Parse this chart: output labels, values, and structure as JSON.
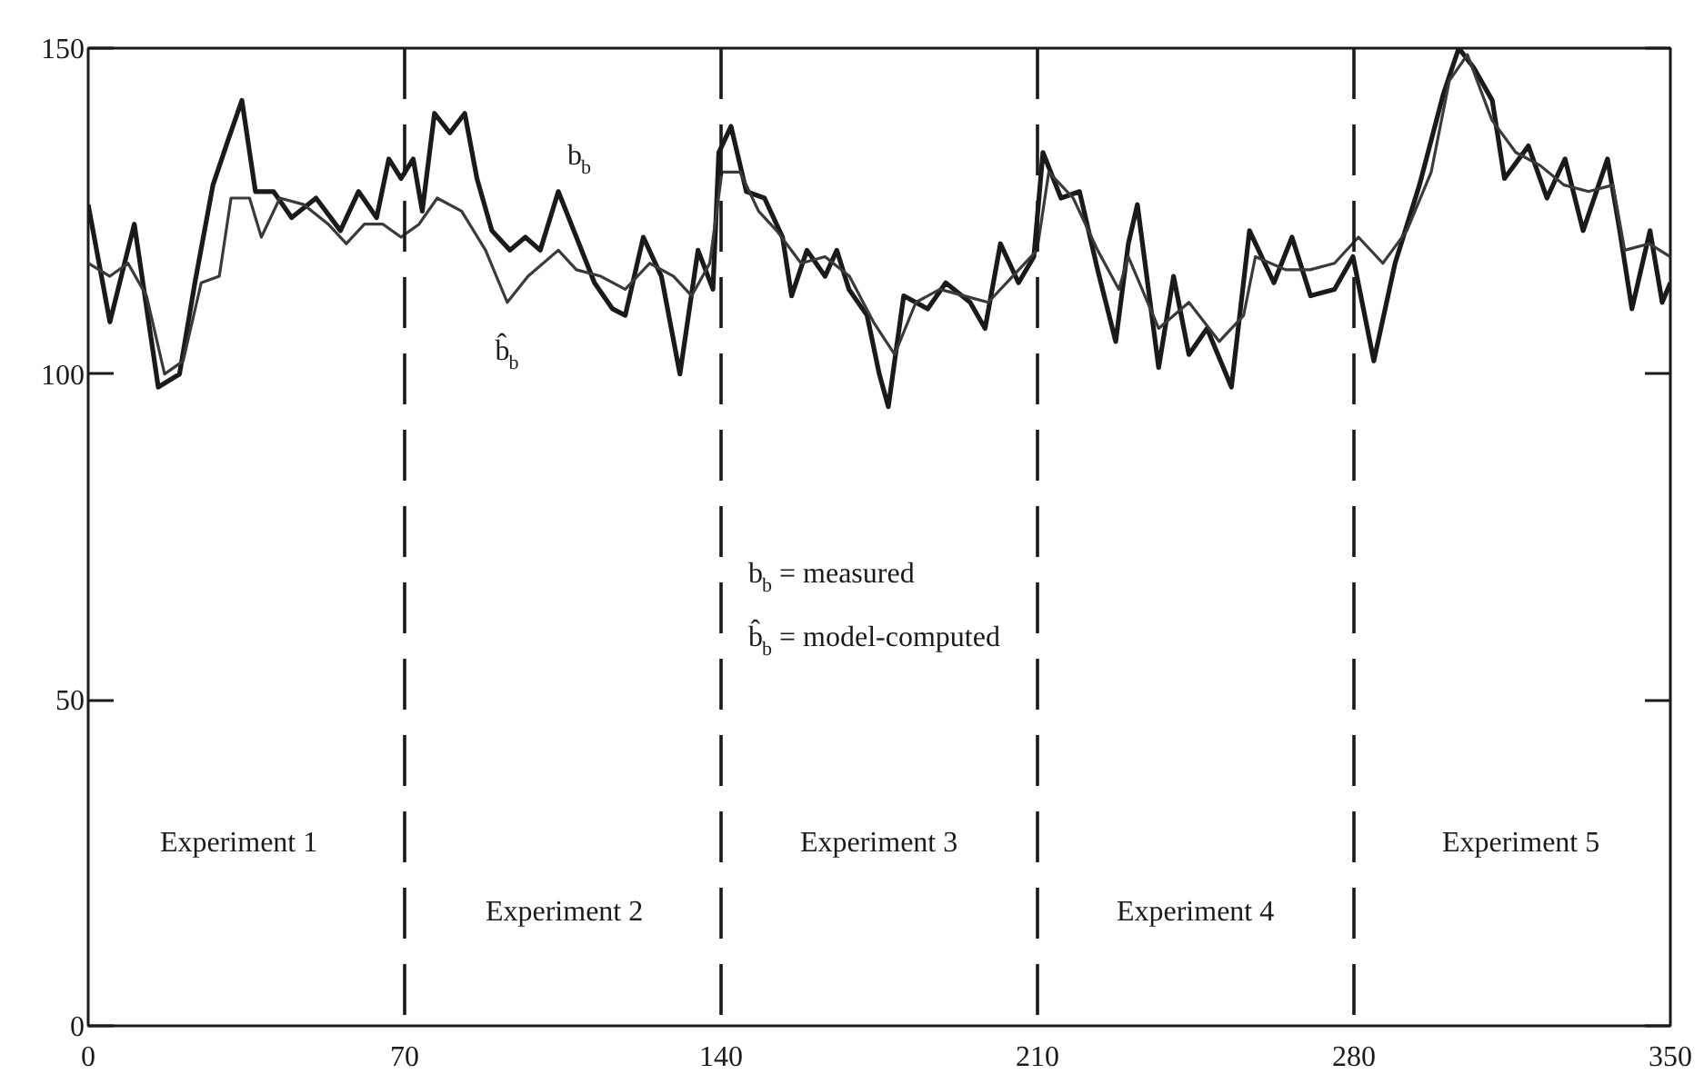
{
  "chart_data": {
    "type": "line",
    "xlim": [
      0,
      350
    ],
    "xticks": [
      0,
      70,
      140,
      210,
      280,
      350
    ],
    "ylim": [
      0,
      150
    ],
    "yticks": [
      0,
      50,
      100,
      150
    ],
    "grid": false,
    "legend": false,
    "marker": "none",
    "line_style": "solid",
    "series": [
      {
        "name": "b$_{b}$",
        "color": "#1a1a1a",
        "x": [
          0,
          4.8,
          10.2,
          15.5,
          20.2,
          23.6,
          27.6,
          31,
          34,
          37,
          41,
          45,
          50.4,
          55.8,
          59.8,
          63.8,
          66.5,
          69.2,
          71.9,
          73.9,
          76.6,
          80,
          83.3,
          86,
          89.3,
          93.3,
          96.7,
          100,
          104,
          108,
          112,
          116,
          118.8,
          122.8,
          126.8,
          130.9,
          134.9,
          138.2,
          139.5,
          142.2,
          145.6,
          149.6,
          153.6,
          155.6,
          159,
          163,
          165.6,
          168.3,
          172.3,
          175,
          177,
          180.4,
          185.7,
          189.7,
          195.1,
          198.4,
          201.8,
          205.8,
          209.2,
          211.2,
          215.2,
          219.3,
          223.3,
          227.3,
          230.1,
          232.1,
          236.8,
          240.1,
          243.5,
          247.5,
          252.9,
          256.9,
          262.3,
          266.3,
          270.4,
          275.7,
          279.8,
          284.4,
          289.1,
          294.5,
          299.8,
          303.2,
          306.5,
          310.6,
          313.3,
          318.6,
          322.7,
          326.7,
          330.7,
          336.1,
          338.8,
          341.5,
          345.5,
          348.2,
          350
        ],
        "values": [
          126,
          108,
          123,
          98,
          100,
          114,
          129,
          136,
          142,
          128,
          128,
          124,
          127,
          122,
          128,
          124,
          133,
          130,
          133,
          125,
          140,
          137,
          140,
          130,
          122,
          119,
          121,
          119,
          128,
          121,
          114,
          110,
          109,
          121,
          115,
          100,
          119,
          113,
          134,
          138,
          128,
          127,
          121,
          112,
          119,
          115,
          119,
          113,
          109,
          100,
          95,
          112,
          110,
          114,
          111,
          107,
          120,
          114,
          118,
          134,
          127,
          128,
          116,
          105,
          120,
          126,
          101,
          115,
          103,
          107,
          98,
          122,
          114,
          121,
          112,
          113,
          118,
          102,
          117,
          129,
          143,
          150,
          147,
          142,
          130,
          135,
          127,
          133,
          122,
          133,
          122,
          110,
          122,
          111,
          114
        ]
      },
      {
        "name": "b̂$_{b}$",
        "color": "#3a3a3a",
        "x": [
          0,
          4.8,
          8.8,
          12.9,
          16.9,
          21,
          25,
          29,
          31.6,
          35.7,
          38.3,
          42.4,
          47.7,
          53.1,
          57.1,
          61.1,
          65.2,
          69.2,
          73.2,
          77.2,
          82.6,
          87.9,
          92.7,
          97.3,
          104,
          108,
          113.4,
          118.8,
          124.2,
          129.5,
          133.5,
          137.5,
          140.2,
          144.2,
          148.3,
          152.3,
          157.7,
          163,
          168.4,
          173.7,
          178.4,
          183.1,
          188.4,
          193.8,
          199.1,
          204.5,
          209.9,
          212.5,
          217.9,
          223.3,
          228,
          230.1,
          236.8,
          243.5,
          250.2,
          255.6,
          258.2,
          264.9,
          270.3,
          275.7,
          281,
          286.4,
          291.7,
          297.1,
          301.1,
          305.1,
          310.5,
          315.8,
          321.2,
          326.5,
          331.9,
          337.3,
          339.9,
          345.3,
          350
        ],
        "values": [
          117,
          115,
          117,
          112,
          100,
          102,
          114,
          115,
          127,
          127,
          121,
          127,
          126,
          123,
          120,
          123,
          123,
          121,
          123,
          127,
          125,
          119,
          111,
          115,
          119,
          116,
          115,
          113,
          117,
          115,
          112,
          117,
          131,
          131,
          125,
          122,
          117,
          118,
          115,
          108,
          103,
          111,
          113,
          112,
          111,
          115,
          119,
          131,
          127,
          119,
          113,
          118,
          107,
          111,
          105,
          109,
          118,
          116,
          116,
          117,
          121,
          117,
          122,
          131,
          145,
          149,
          139,
          134,
          132,
          129,
          128,
          129,
          119,
          120,
          118
        ]
      }
    ],
    "ref_lines": [
      {
        "axis": "x",
        "value": 70,
        "color": "#1a1a1a",
        "line_style": "dashed"
      },
      {
        "axis": "x",
        "value": 140,
        "color": "#1a1a1a",
        "line_style": "dashed"
      },
      {
        "axis": "x",
        "value": 210,
        "color": "#1a1a1a",
        "line_style": "dashed"
      },
      {
        "axis": "x",
        "value": 280,
        "color": "#1a1a1a",
        "line_style": "dashed"
      }
    ],
    "annotations": [
      "Experiment 1",
      "Experiment 2",
      "Experiment 3",
      "Experiment 4",
      "Experiment 5",
      "b$_{b}$ = measured",
      "b̂$_{b}$ = model-computed"
    ]
  }
}
